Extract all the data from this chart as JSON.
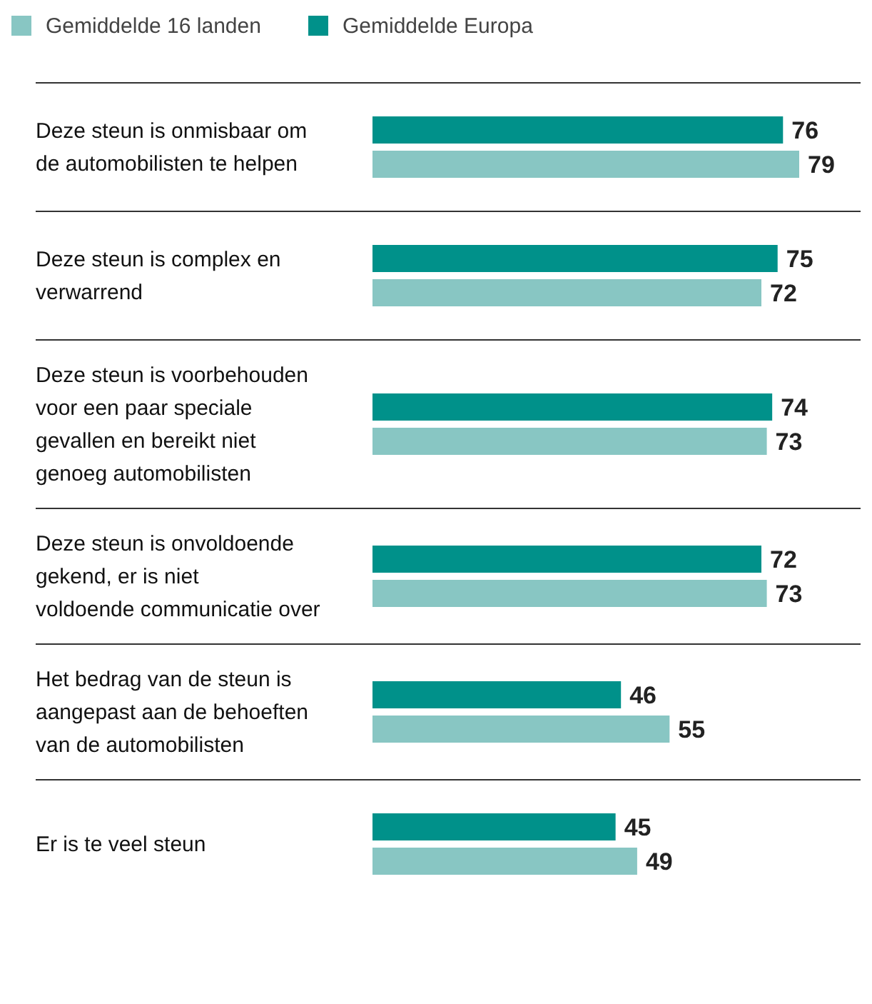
{
  "chart_data": {
    "type": "bar",
    "orientation": "horizontal",
    "data_labels": true,
    "legend": "top left",
    "categories": [
      "Deze steun is onmisbaar om de automobilisten te helpen",
      "Deze steun is complex en verwarrend",
      "Deze steun is voorbehouden voor een paar speciale gevallen en bereikt niet genoeg automobilisten",
      "Deze steun is onvoldoende gekend, er is niet voldoende communicatie over",
      "Het bedrag van de steun is aangepast aan de behoeften van de automobilisten",
      "Er is te veel steun"
    ],
    "series": [
      {
        "name": "Gemiddelde 16 landen",
        "color": "#88c6c3",
        "values": [
          79,
          72,
          73,
          73,
          55,
          49
        ]
      },
      {
        "name": "Gemiddelde Europa",
        "color": "#00918a",
        "values": [
          76,
          75,
          74,
          72,
          46,
          45
        ]
      }
    ]
  }
}
